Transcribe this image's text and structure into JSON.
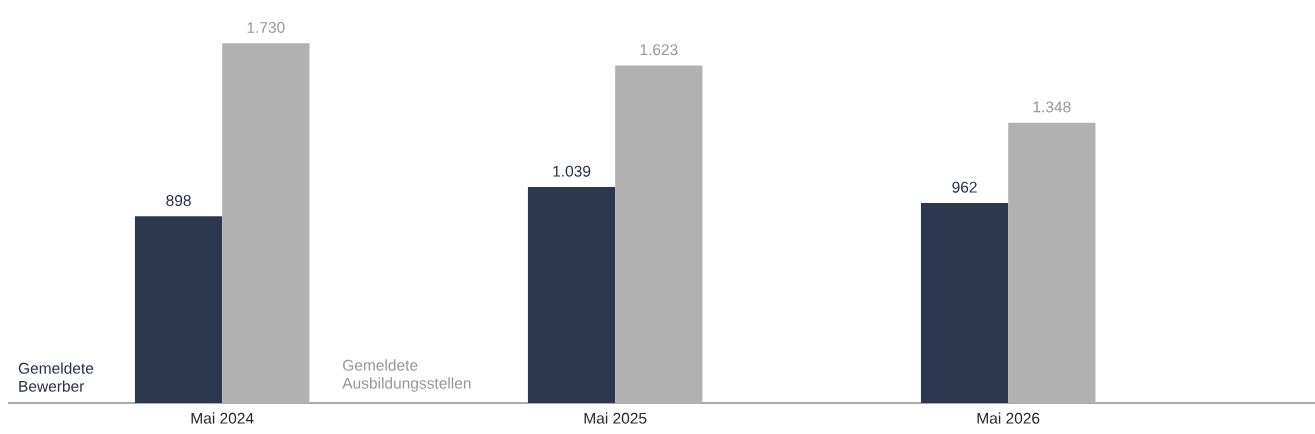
{
  "chart_data": {
    "type": "bar",
    "categories": [
      "Mai 2024",
      "Mai 2025",
      "Mai 2026"
    ],
    "series": [
      {
        "name": "Gemeldete Bewerber",
        "color": "#2e3750",
        "values": [
          898,
          1039,
          962
        ],
        "value_labels": [
          "898",
          "1.039",
          "962"
        ]
      },
      {
        "name": "Gemeldete Ausbildungsstellen",
        "color": "#b1b1b1",
        "values": [
          1730,
          1623,
          1348
        ],
        "value_labels": [
          "1.730",
          "1.623",
          "1.348"
        ]
      }
    ]
  }
}
